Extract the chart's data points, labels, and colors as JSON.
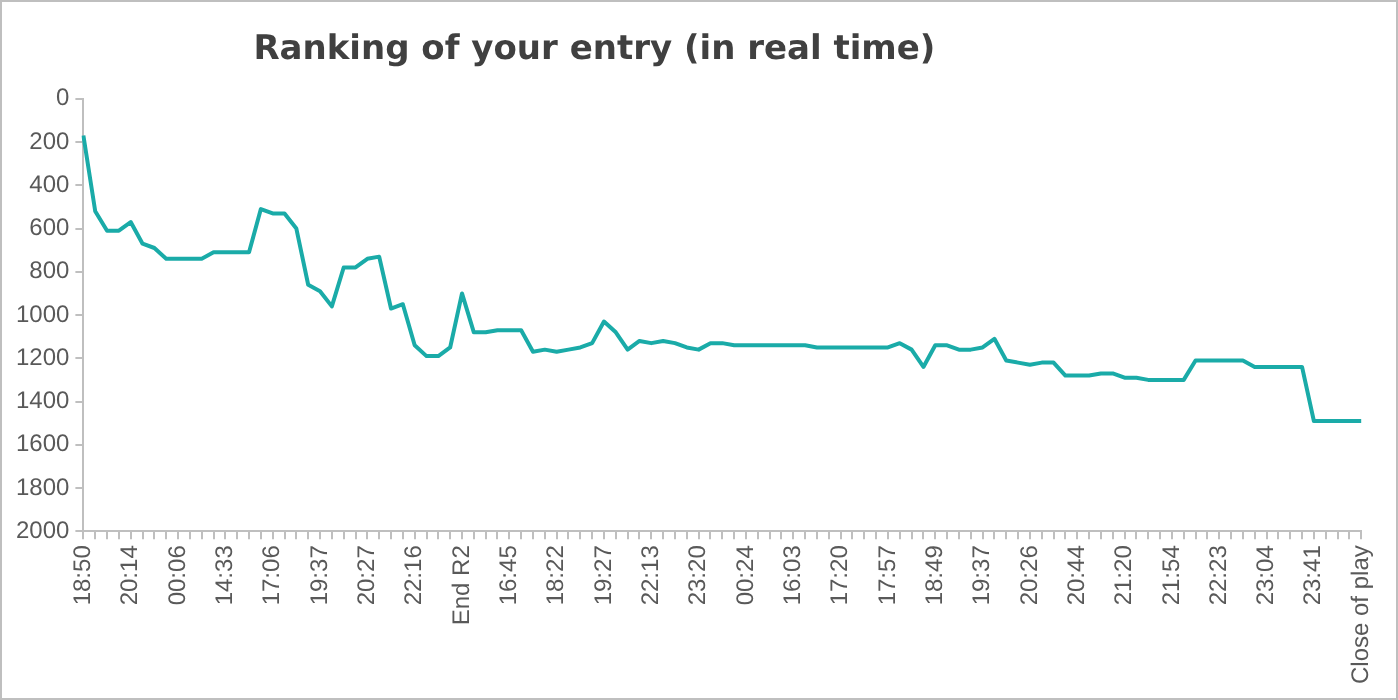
{
  "chart_data": {
    "type": "line",
    "title": "Ranking of your entry (in real time)",
    "categories": [
      "18:50",
      null,
      null,
      null,
      "20:14",
      null,
      null,
      null,
      "00:06",
      null,
      null,
      null,
      "14:33",
      null,
      null,
      null,
      "17:06",
      null,
      null,
      null,
      "19:37",
      null,
      null,
      null,
      "20:27",
      null,
      null,
      null,
      "22:16",
      null,
      null,
      null,
      "End R2",
      null,
      null,
      null,
      "16:45",
      null,
      null,
      null,
      "18:22",
      null,
      null,
      null,
      "19:27",
      null,
      null,
      null,
      "22:13",
      null,
      null,
      null,
      "23:20",
      null,
      null,
      null,
      "00:24",
      null,
      null,
      null,
      "16:03",
      null,
      null,
      null,
      "17:20",
      null,
      null,
      null,
      "17:57",
      null,
      null,
      null,
      "18:49",
      null,
      null,
      null,
      "19:37",
      null,
      null,
      null,
      "20:26",
      null,
      null,
      null,
      "20:44",
      null,
      null,
      null,
      "21:20",
      null,
      null,
      null,
      "21:54",
      null,
      null,
      null,
      "22:23",
      null,
      null,
      null,
      "23:04",
      null,
      null,
      null,
      "23:41",
      null,
      null,
      null,
      "Close of play"
    ],
    "series": [
      {
        "color": "#1aaba8",
        "values": [
          170,
          520,
          610,
          610,
          570,
          670,
          690,
          740,
          740,
          740,
          740,
          710,
          710,
          710,
          710,
          510,
          530,
          530,
          600,
          860,
          890,
          960,
          780,
          780,
          740,
          730,
          970,
          950,
          1140,
          1190,
          1190,
          1150,
          900,
          1080,
          1080,
          1070,
          1070,
          1070,
          1170,
          1160,
          1170,
          1160,
          1150,
          1130,
          1030,
          1080,
          1160,
          1120,
          1130,
          1120,
          1130,
          1150,
          1160,
          1130,
          1130,
          1140,
          1140,
          1140,
          1140,
          1140,
          1140,
          1140,
          1150,
          1150,
          1150,
          1150,
          1150,
          1150,
          1150,
          1130,
          1160,
          1240,
          1140,
          1140,
          1160,
          1160,
          1150,
          1110,
          1210,
          1220,
          1230,
          1220,
          1220,
          1280,
          1280,
          1280,
          1270,
          1270,
          1290,
          1290,
          1300,
          1300,
          1300,
          1300,
          1210,
          1210,
          1210,
          1210,
          1210,
          1240,
          1240,
          1240,
          1240,
          1240,
          1490,
          1490,
          1490,
          1490,
          1490
        ]
      }
    ],
    "ylim": [
      2000,
      0
    ],
    "yticks": [
      0,
      200,
      400,
      600,
      800,
      1000,
      1200,
      1400,
      1600,
      1800,
      2000
    ],
    "marker": "none",
    "line_style": "solid",
    "legend": false
  }
}
